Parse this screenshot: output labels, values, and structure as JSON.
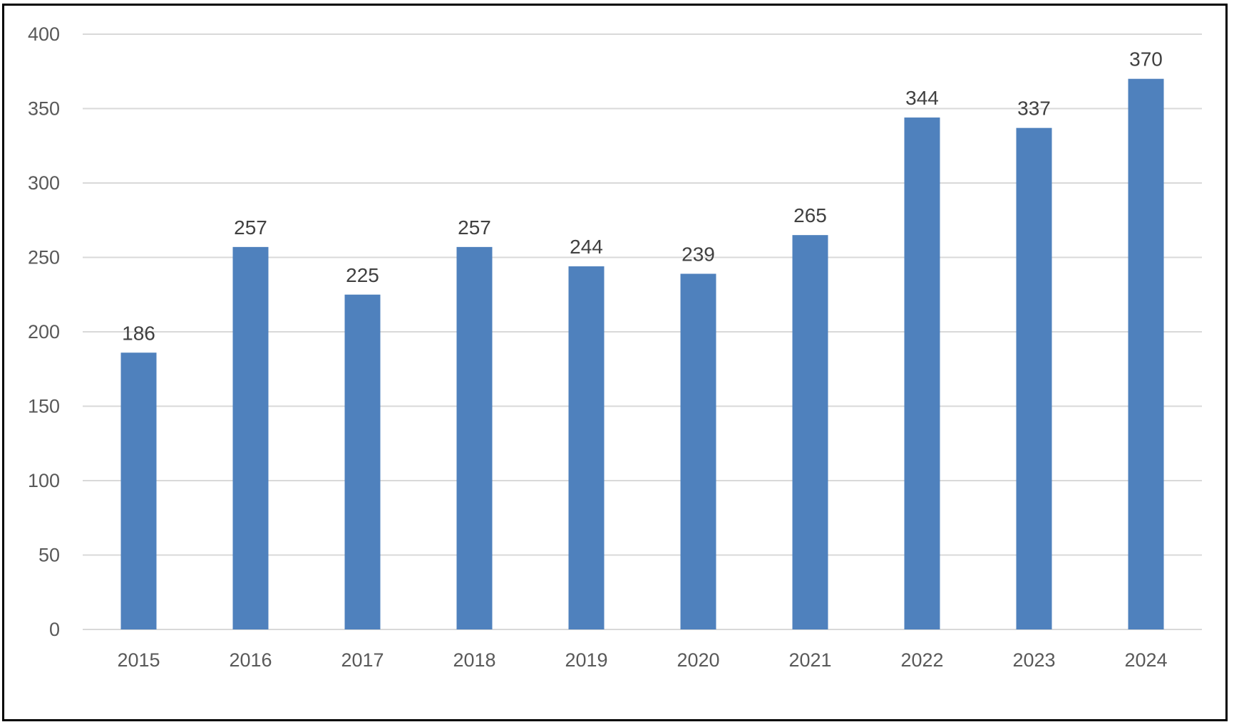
{
  "chart_data": {
    "type": "bar",
    "title": "",
    "xlabel": "",
    "ylabel": "",
    "categories": [
      "2015",
      "2016",
      "2017",
      "2018",
      "2019",
      "2020",
      "2021",
      "2022",
      "2023",
      "2024"
    ],
    "values": [
      186,
      257,
      225,
      257,
      244,
      239,
      265,
      344,
      337,
      370
    ],
    "ylim": [
      0,
      400
    ],
    "y_ticks": [
      0,
      50,
      100,
      150,
      200,
      250,
      300,
      350,
      400
    ],
    "grid": true,
    "legend": "none",
    "colors": {
      "bar": "#4f81bd",
      "grid": "#d9d9d9",
      "tick_text": "#595959",
      "data_label_text": "#404040"
    }
  }
}
